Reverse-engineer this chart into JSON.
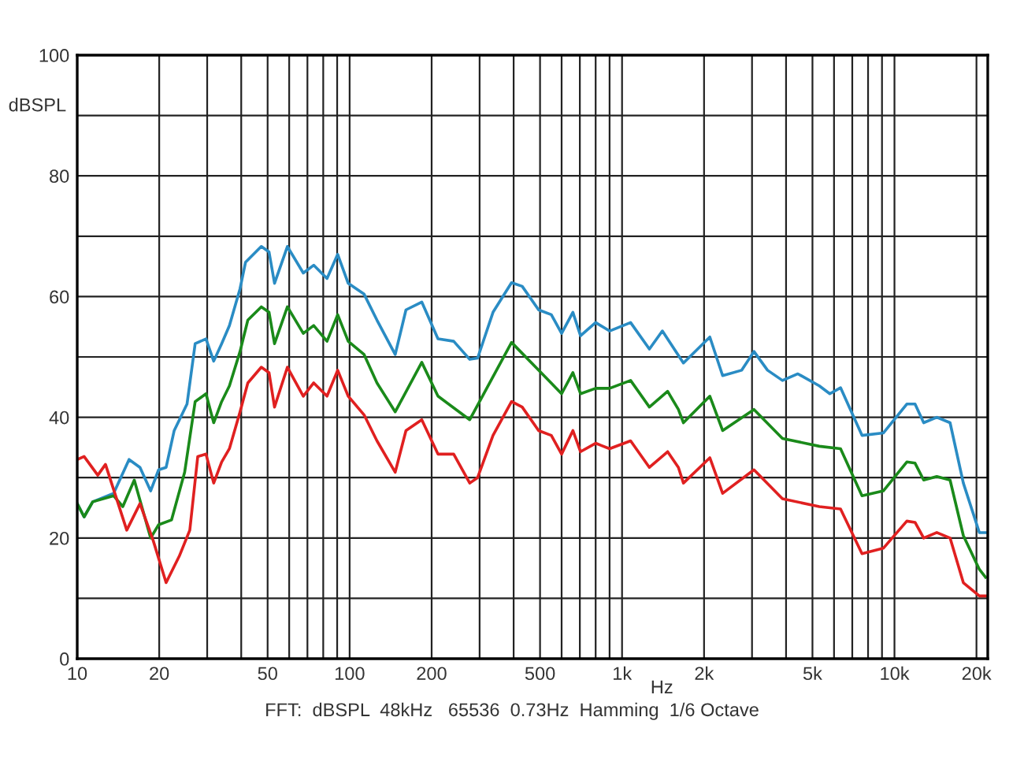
{
  "chart_data": {
    "type": "line",
    "xlabel": "Hz",
    "ylabel": "dBSPL",
    "log": "x",
    "grid": true,
    "legend": false,
    "line_style": "solid",
    "marker": "none",
    "xlim": [
      10,
      22000
    ],
    "ylim": [
      0,
      100
    ],
    "xticks": [
      10,
      20,
      {
        "value": 30,
        "label": null
      },
      {
        "value": 40,
        "label": null
      },
      50,
      {
        "value": 60,
        "label": null
      },
      {
        "value": 70,
        "label": null
      },
      {
        "value": 80,
        "label": null
      },
      {
        "value": 90,
        "label": null
      },
      100,
      200,
      {
        "value": 300,
        "label": null
      },
      {
        "value": 400,
        "label": null
      },
      500,
      {
        "value": 600,
        "label": null
      },
      {
        "value": 700,
        "label": null
      },
      {
        "value": 800,
        "label": null
      },
      {
        "value": 900,
        "label": null
      },
      {
        "value": 1000,
        "label": "1k"
      },
      {
        "value": 2000,
        "label": "2k"
      },
      {
        "value": 3000,
        "label": null
      },
      {
        "value": 4000,
        "label": null
      },
      {
        "value": 5000,
        "label": "5k"
      },
      {
        "value": 6000,
        "label": null
      },
      {
        "value": 7000,
        "label": null
      },
      {
        "value": 8000,
        "label": null
      },
      {
        "value": 9000,
        "label": null
      },
      {
        "value": 10000,
        "label": "10k"
      },
      {
        "value": 20000,
        "label": "20k"
      }
    ],
    "yticks": [
      0,
      {
        "value": 10,
        "label": null
      },
      20,
      {
        "value": 30,
        "label": null
      },
      40,
      {
        "value": 50,
        "label": null
      },
      60,
      {
        "value": 70,
        "label": null
      },
      80,
      {
        "value": 90,
        "label": null
      },
      100
    ],
    "annotations": [
      "FFT:  dBSPL  48kHz   65536  0.73Hz  Hamming  1/6 Octave"
    ],
    "series": [
      {
        "color": "#2a8cc4",
        "x": [
          10,
          10.6,
          11.4,
          13.6,
          15.5,
          17.0,
          18.6,
          19.9,
          21.2,
          22.7,
          25.3,
          27.1,
          29.7,
          31.7,
          33.9,
          36.2,
          39.6,
          41.5,
          47.4,
          50.6,
          53.0,
          59.1,
          67.6,
          73.8,
          82.6,
          90.4,
          98.8,
          113,
          126,
          147,
          161,
          184,
          211,
          241,
          276,
          295,
          336,
          393,
          430,
          494,
          550,
          600,
          660,
          704,
          800,
          900,
          1075,
          1260,
          1406,
          1680,
          2100,
          2340,
          2750,
          3050,
          3420,
          3880,
          4420,
          5300,
          5790,
          6340,
          7600,
          9100,
          11100,
          11900,
          12800,
          14300,
          16000,
          17900,
          20500,
          21600
        ],
        "values": [
          25.7,
          23.5,
          26,
          27.4,
          33,
          31.7,
          27.8,
          31.3,
          31.7,
          37.8,
          42.2,
          52.2,
          53,
          49.3,
          52.2,
          55.2,
          61.3,
          65.7,
          68.3,
          67.4,
          62.2,
          68.3,
          63.9,
          65.2,
          63,
          67,
          62.2,
          60.4,
          56.1,
          50.4,
          57.8,
          59.1,
          53,
          52.6,
          49.6,
          49.8,
          57.4,
          62.3,
          61.7,
          57.8,
          57,
          53.9,
          57.4,
          53.5,
          55.7,
          54.3,
          55.7,
          51.3,
          54.3,
          49,
          53.3,
          46.9,
          47.8,
          50.9,
          47.8,
          46.1,
          47.2,
          45.2,
          43.9,
          44.9,
          37,
          37.4,
          42.2,
          42.2,
          39.1,
          40,
          39.1,
          29.1,
          20.9,
          20.9
        ]
      },
      {
        "color": "#1a8a1a",
        "x": [
          10,
          10.6,
          11.4,
          13.6,
          14.7,
          16.2,
          18.6,
          19.9,
          22.2,
          24.8,
          27.1,
          29.7,
          31.7,
          33.9,
          36.2,
          39.6,
          42.3,
          47.4,
          50.6,
          53.0,
          59.1,
          67.6,
          73.8,
          82.6,
          90.4,
          98.8,
          113,
          126,
          147,
          184,
          211,
          276,
          393,
          494,
          600,
          660,
          704,
          800,
          900,
          1075,
          1260,
          1470,
          1610,
          1680,
          2100,
          2340,
          3050,
          3880,
          5300,
          6340,
          7600,
          9100,
          11100,
          11900,
          12800,
          14300,
          16000,
          17900,
          20500,
          21600
        ],
        "values": [
          25.7,
          23.5,
          26,
          27,
          25.2,
          29.6,
          20,
          22.2,
          23,
          30.9,
          42.6,
          43.9,
          39.1,
          42.6,
          45.2,
          50.9,
          56.1,
          58.3,
          57.4,
          52.2,
          58.3,
          53.9,
          55.2,
          52.6,
          57,
          52.6,
          50.4,
          45.7,
          40.9,
          49.1,
          43.5,
          39.6,
          52.4,
          47.8,
          43.9,
          47.4,
          43.9,
          44.8,
          44.8,
          46.1,
          41.7,
          44.3,
          41.3,
          39.1,
          43.5,
          37.8,
          41.3,
          36.5,
          35.2,
          34.8,
          27,
          27.8,
          32.6,
          32.4,
          29.6,
          30.2,
          29.6,
          20.4,
          14.8,
          13.5
        ]
      },
      {
        "color": "#e02020",
        "x": [
          10,
          10.6,
          11.9,
          12.7,
          15.2,
          17.0,
          19.0,
          21.2,
          23.7,
          25.9,
          27.7,
          29.7,
          31.7,
          33.9,
          36.2,
          39.6,
          42.3,
          47.4,
          50.6,
          53.0,
          59.1,
          67.6,
          73.8,
          82.6,
          90.4,
          98.8,
          113,
          126,
          147,
          161,
          184,
          211,
          241,
          276,
          295,
          336,
          393,
          430,
          494,
          550,
          600,
          660,
          704,
          800,
          900,
          1075,
          1260,
          1470,
          1610,
          1680,
          2100,
          2340,
          3050,
          3880,
          5300,
          6340,
          7600,
          9100,
          11100,
          11900,
          12800,
          14300,
          16000,
          17900,
          20500,
          21600
        ],
        "values": [
          33,
          33.5,
          30.4,
          32.2,
          21.3,
          25.7,
          19.6,
          12.6,
          17,
          21.3,
          33.5,
          33.9,
          29.1,
          32.6,
          34.8,
          40.9,
          45.7,
          48.3,
          47.4,
          41.7,
          48.3,
          43.5,
          45.7,
          43.5,
          47.8,
          43.5,
          40.4,
          36.1,
          30.9,
          37.8,
          39.6,
          33.9,
          33.9,
          29.1,
          30,
          37,
          42.6,
          41.7,
          37.8,
          37,
          33.9,
          37.8,
          34.3,
          35.7,
          34.8,
          36.1,
          31.7,
          34.3,
          31.7,
          29.1,
          33.3,
          27.4,
          31.3,
          26.5,
          25.2,
          24.8,
          17.4,
          18.3,
          22.8,
          22.6,
          20,
          20.9,
          20,
          12.6,
          10.4,
          10.4
        ]
      }
    ]
  }
}
